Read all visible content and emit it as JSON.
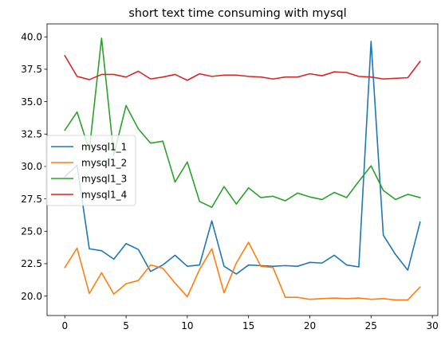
{
  "chart_data": {
    "type": "line",
    "title": "short text time consuming with mysql",
    "xlabel": "",
    "ylabel": "",
    "xlim": [
      -1.45,
      30.45
    ],
    "ylim": [
      18.5,
      41.0
    ],
    "xticks": [
      0,
      5,
      10,
      15,
      20,
      25,
      30
    ],
    "yticks": [
      20.0,
      22.5,
      25.0,
      27.5,
      30.0,
      32.5,
      35.0,
      37.5,
      40.0
    ],
    "yticks_labels": [
      "20.0",
      "22.5",
      "25.0",
      "27.5",
      "30.0",
      "32.5",
      "35.0",
      "37.5",
      "40.0"
    ],
    "grid": false,
    "legend_position": "center-left",
    "x": [
      0,
      1,
      2,
      3,
      4,
      5,
      6,
      7,
      8,
      9,
      10,
      11,
      12,
      13,
      14,
      15,
      16,
      17,
      18,
      19,
      20,
      21,
      22,
      23,
      24,
      25,
      26,
      27,
      28,
      29
    ],
    "series": [
      {
        "name": "mysql1_1",
        "color": "#1f77b4",
        "values": [
          29.2,
          30.1,
          23.65,
          23.5,
          22.85,
          24.05,
          23.6,
          21.9,
          22.4,
          23.15,
          22.3,
          22.4,
          25.8,
          22.3,
          21.7,
          22.4,
          22.35,
          22.3,
          22.35,
          22.3,
          22.6,
          22.55,
          23.15,
          22.4,
          22.25,
          39.65,
          24.7,
          23.2,
          22.0,
          25.7
        ]
      },
      {
        "name": "mysql1_2",
        "color": "#ff7f0e",
        "values": [
          22.2,
          23.7,
          20.2,
          21.8,
          20.15,
          20.95,
          21.2,
          22.4,
          22.15,
          21.0,
          19.95,
          22.05,
          23.65,
          20.25,
          22.55,
          24.15,
          22.3,
          22.2,
          19.9,
          19.9,
          19.75,
          19.8,
          19.85,
          19.8,
          19.85,
          19.75,
          19.8,
          19.7,
          19.7,
          20.7
        ]
      },
      {
        "name": "mysql1_3",
        "color": "#2ca02c",
        "values": [
          32.8,
          34.2,
          31.25,
          39.9,
          30.9,
          34.7,
          32.9,
          31.8,
          31.95,
          28.8,
          30.35,
          27.3,
          26.85,
          28.45,
          27.1,
          28.35,
          27.6,
          27.7,
          27.35,
          27.95,
          27.65,
          27.45,
          28.0,
          27.6,
          28.85,
          30.05,
          28.15,
          27.45,
          27.85,
          27.6
        ]
      },
      {
        "name": "mysql1_4",
        "color": "#d62728",
        "values": [
          38.55,
          36.95,
          36.7,
          37.1,
          37.1,
          36.9,
          37.35,
          36.75,
          36.9,
          37.1,
          36.65,
          37.15,
          36.95,
          37.05,
          37.05,
          36.95,
          36.9,
          36.75,
          36.9,
          36.9,
          37.15,
          37.0,
          37.3,
          37.25,
          36.95,
          36.9,
          36.75,
          36.8,
          36.85,
          38.1
        ]
      }
    ]
  }
}
